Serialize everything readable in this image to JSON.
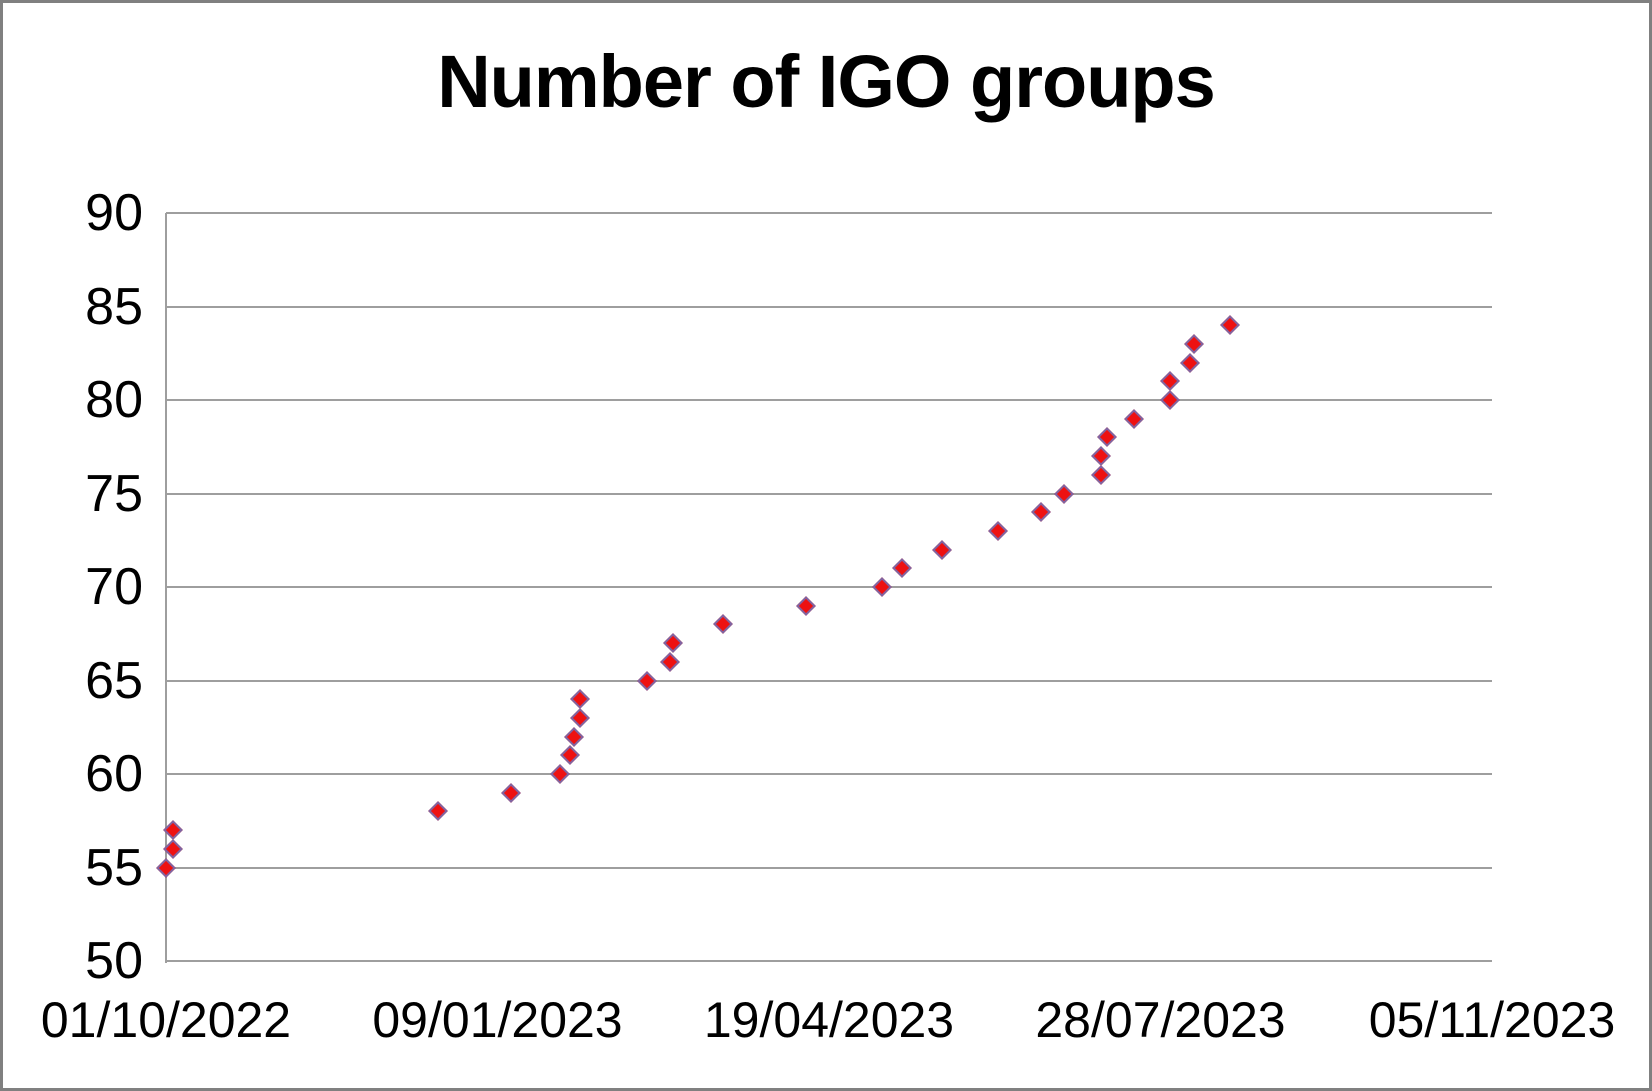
{
  "window": {
    "background": "#ffffff",
    "frame_border_color": "#808080"
  },
  "colors": {
    "gridline": "#9e9e9e",
    "axis_line": "#9e9e9e",
    "text": "#000000",
    "marker_fill": "#ee1111",
    "marker_stroke": "#8064a2"
  },
  "chart_data": {
    "type": "scatter",
    "title": "Number of IGO groups",
    "xlabel": "",
    "ylabel": "",
    "legend": "none",
    "grid": "horizontal",
    "marker": {
      "shape": "diamond",
      "fill": "#ee1111",
      "stroke": "#8064a2"
    },
    "x_axis": {
      "type": "date",
      "date_format": "dd/mm/yyyy",
      "tick_labels": [
        "01/10/2022",
        "09/01/2023",
        "19/04/2023",
        "28/07/2023",
        "05/11/2023"
      ],
      "tick_day_offsets": [
        0,
        100,
        200,
        300,
        400
      ],
      "range_days": [
        0,
        400
      ]
    },
    "y_axis": {
      "ticks": [
        90,
        85,
        80,
        75,
        70,
        65,
        60,
        55,
        50
      ],
      "range": [
        50,
        90
      ]
    },
    "series": [
      {
        "name": "IGO groups",
        "points_note": "each point = [estimated days after 01/10/2022, value]",
        "points": [
          [
            0,
            55
          ],
          [
            2,
            56
          ],
          [
            2,
            57
          ],
          [
            82,
            58
          ],
          [
            104,
            59
          ],
          [
            119,
            60
          ],
          [
            122,
            61
          ],
          [
            123,
            62
          ],
          [
            125,
            63
          ],
          [
            125,
            64
          ],
          [
            145,
            65
          ],
          [
            152,
            66
          ],
          [
            153,
            67
          ],
          [
            168,
            68
          ],
          [
            193,
            69
          ],
          [
            216,
            70
          ],
          [
            222,
            71
          ],
          [
            234,
            72
          ],
          [
            251,
            73
          ],
          [
            264,
            74
          ],
          [
            271,
            75
          ],
          [
            282,
            76
          ],
          [
            282,
            77
          ],
          [
            284,
            78
          ],
          [
            292,
            79
          ],
          [
            303,
            80
          ],
          [
            303,
            81
          ],
          [
            309,
            82
          ],
          [
            310,
            83
          ],
          [
            321,
            84
          ]
        ]
      }
    ]
  }
}
